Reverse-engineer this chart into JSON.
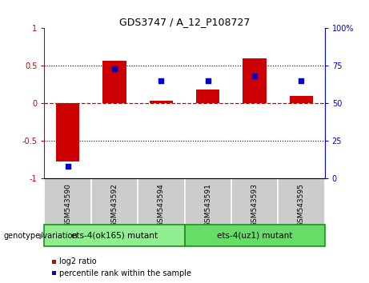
{
  "title": "GDS3747 / A_12_P108727",
  "samples": [
    "GSM543590",
    "GSM543592",
    "GSM543594",
    "GSM543591",
    "GSM543593",
    "GSM543595"
  ],
  "log2_ratio": [
    -0.78,
    0.57,
    0.03,
    0.18,
    0.6,
    0.1
  ],
  "percentile_rank": [
    8,
    73,
    65,
    65,
    68,
    65
  ],
  "groups": [
    {
      "label": "ets-4(ok165) mutant",
      "color": "#90EE90"
    },
    {
      "label": "ets-4(uz1) mutant",
      "color": "#66DD66"
    }
  ],
  "bar_color": "#CC0000",
  "dot_color": "#0000CC",
  "ylim_left": [
    -1,
    1
  ],
  "ylim_right": [
    0,
    100
  ],
  "yticks_left": [
    -1,
    -0.5,
    0,
    0.5,
    1
  ],
  "yticks_right": [
    0,
    25,
    50,
    75,
    100
  ],
  "ytick_labels_left": [
    "-1",
    "-0.5",
    "0",
    "0.5",
    "1"
  ],
  "ytick_labels_right": [
    "0",
    "25",
    "50",
    "75",
    "100%"
  ],
  "legend_log2": "log2 ratio",
  "legend_pct": "percentile rank within the sample",
  "genotype_label": "genotype/variation",
  "hline_color": "#CC0000",
  "dotline_color": "black",
  "sample_bg_color": "#CCCCCC",
  "group_border_color": "#228B22"
}
